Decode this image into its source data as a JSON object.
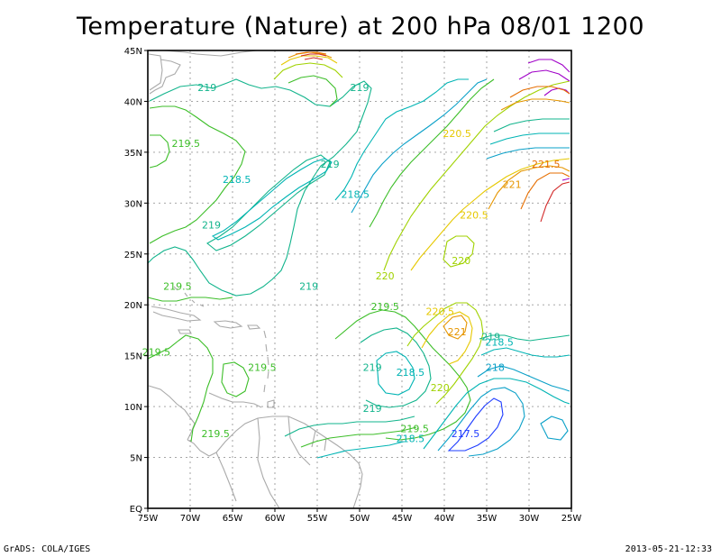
{
  "title": "Temperature (Nature) at 200 hPa 08/01 1200",
  "footer_left": "GrADS: COLA/IGES",
  "footer_right": "2013-05-21-12:33",
  "axes": {
    "lat_ticks": [
      "EQ",
      "5N",
      "10N",
      "15N",
      "20N",
      "25N",
      "30N",
      "35N",
      "40N",
      "45N"
    ],
    "lon_ticks": [
      "75W",
      "70W",
      "65W",
      "60W",
      "55W",
      "50W",
      "45W",
      "40W",
      "35W",
      "30W",
      "25W"
    ]
  },
  "contour_levels": [
    217.5,
    218,
    218.5,
    219,
    219.5,
    220,
    220.5,
    221,
    221.5
  ],
  "contour_labels": [
    {
      "text": "219",
      "lon": -68,
      "lat": 41,
      "level": 219
    },
    {
      "text": "219",
      "lon": -50,
      "lat": 41,
      "level": 219
    },
    {
      "text": "219.5",
      "lon": -70.5,
      "lat": 35.5,
      "level": 219.5
    },
    {
      "text": "219",
      "lon": -53.5,
      "lat": 33.5,
      "level": 219
    },
    {
      "text": "218.5",
      "lon": -64.5,
      "lat": 32,
      "level": 218.5
    },
    {
      "text": "218.5",
      "lon": -50.5,
      "lat": 30.5,
      "level": 218.5
    },
    {
      "text": "219",
      "lon": -67.5,
      "lat": 27.5,
      "level": 219
    },
    {
      "text": "220.5",
      "lon": -38.5,
      "lat": 36.5,
      "level": 220.5
    },
    {
      "text": "221.5",
      "lon": -28,
      "lat": 33.5,
      "level": 221.5
    },
    {
      "text": "221",
      "lon": -32,
      "lat": 31.5,
      "level": 221
    },
    {
      "text": "220.5",
      "lon": -36.5,
      "lat": 28.5,
      "level": 220.5
    },
    {
      "text": "220",
      "lon": -38,
      "lat": 24,
      "level": 220
    },
    {
      "text": "219.5",
      "lon": -71.5,
      "lat": 21.5,
      "level": 219.5
    },
    {
      "text": "219",
      "lon": -56,
      "lat": 21.5,
      "level": 219
    },
    {
      "text": "220",
      "lon": -47,
      "lat": 22.5,
      "level": 220
    },
    {
      "text": "219.5",
      "lon": -47,
      "lat": 19.5,
      "level": 219.5
    },
    {
      "text": "220.5",
      "lon": -40.5,
      "lat": 19,
      "level": 220.5
    },
    {
      "text": "221",
      "lon": -38.5,
      "lat": 17,
      "level": 221
    },
    {
      "text": "219",
      "lon": -34.5,
      "lat": 16.5,
      "level": 219
    },
    {
      "text": "218.5",
      "lon": -33.5,
      "lat": 16,
      "level": 218.5
    },
    {
      "text": "219.5",
      "lon": -74,
      "lat": 15,
      "level": 219.5
    },
    {
      "text": "218",
      "lon": -34,
      "lat": 13.5,
      "level": 218
    },
    {
      "text": "219.5",
      "lon": -61.5,
      "lat": 13.5,
      "level": 219.5
    },
    {
      "text": "219",
      "lon": -48.5,
      "lat": 13.5,
      "level": 219
    },
    {
      "text": "218.5",
      "lon": -44,
      "lat": 13,
      "level": 218.5
    },
    {
      "text": "220",
      "lon": -40.5,
      "lat": 11.5,
      "level": 220
    },
    {
      "text": "219",
      "lon": -48.5,
      "lat": 9.5,
      "level": 219
    },
    {
      "text": "219.5",
      "lon": -43.5,
      "lat": 7.5,
      "level": 219.5
    },
    {
      "text": "218.5",
      "lon": -44,
      "lat": 6.5,
      "level": 218.5
    },
    {
      "text": "217.5",
      "lon": -37.5,
      "lat": 7,
      "level": 217.5
    },
    {
      "text": "219.5",
      "lon": -67,
      "lat": 7,
      "level": 219.5
    }
  ],
  "level_colors": {
    "217.5": "#1e3cff",
    "218": "#0aa0c8",
    "218.5": "#00b4b4",
    "219": "#12b48c",
    "219.5": "#3cbe28",
    "220": "#a0d200",
    "220.5": "#e6c800",
    "221": "#e69600",
    "221.5": "#e66e00",
    "222": "#d22828",
    "high": "#a000c8"
  }
}
